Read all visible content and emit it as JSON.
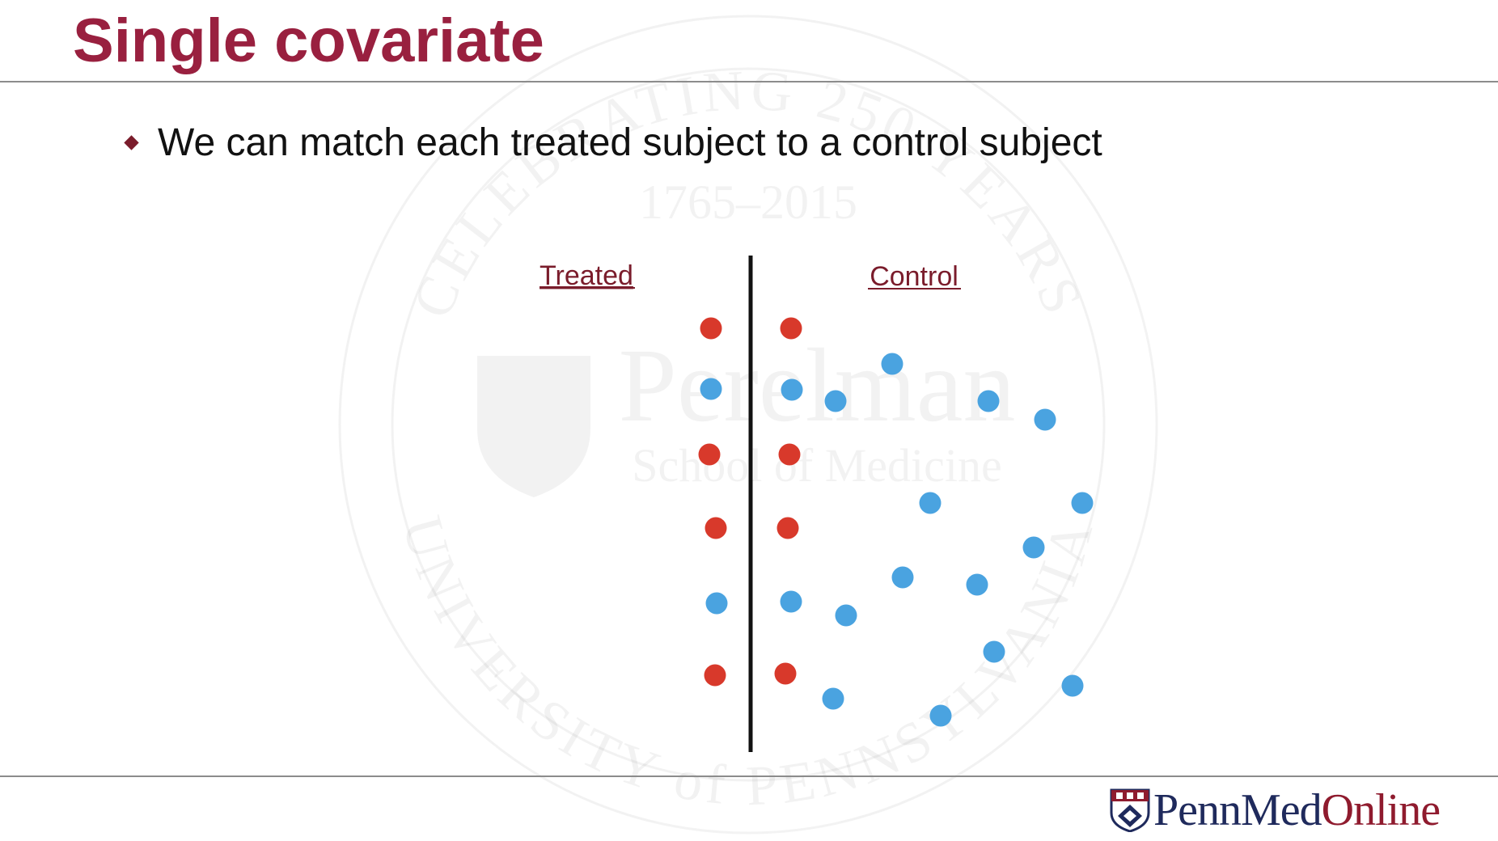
{
  "slide": {
    "title": "Single covariate",
    "bullet": "We can match each treated subject to a control subject"
  },
  "diagram": {
    "treated_label": "Treated",
    "control_label": "Control",
    "colors": {
      "treated_dot": "#d8392b",
      "control_dot": "#4aa3e0",
      "label": "#7a1c2b",
      "divider": "#111111"
    },
    "treated_points": [
      "red",
      "blue",
      "red",
      "red",
      "blue",
      "red"
    ],
    "control_points": [
      "red",
      "blue",
      "red",
      "red",
      "blue",
      "red",
      "blue",
      "blue",
      "blue",
      "blue",
      "blue",
      "blue",
      "blue",
      "blue",
      "blue",
      "blue",
      "blue",
      "blue",
      "blue",
      "blue"
    ]
  },
  "watermark": {
    "arc_text_top": "CELEBRATING 250 YEARS",
    "years": "1765–2015",
    "school_name": "Perelman",
    "school_sub": "School of Medicine",
    "arc_text_bottom": "UNIVERSITY of PENNSYLVANIA"
  },
  "logo": {
    "icon": "penn-shield-icon",
    "text_part1": "PennMed",
    "text_part2": "Online",
    "color_part1": "#1f2a5c",
    "color_part2": "#8f1b2e"
  }
}
